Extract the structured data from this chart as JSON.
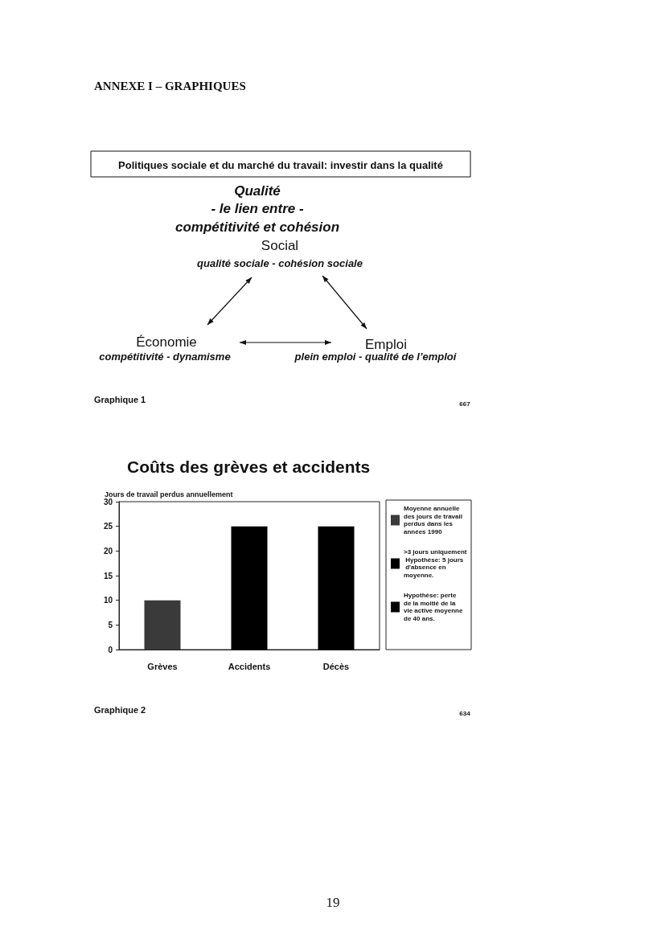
{
  "chart_data": [
    {
      "type": "other",
      "title": "Politiques sociale et du marché du travail: investir dans la qualité",
      "subtitle": "Qualité\n- le lien entre -\ncompétitivité et cohésion",
      "annotations": [
        "ANNEXE I – GRAPHIQUES",
        "Social",
        "qualité sociale - cohésion sociale",
        "Économie",
        "compétitivité - dynamisme",
        "Emploi",
        "plein emploi - qualité de l’emploi",
        "Graphique 1",
        "667"
      ]
    },
    {
      "type": "bar",
      "title": "Coûts des grèves et accidents",
      "ylabel": "Jours de travail perdus annuellement",
      "categories": [
        "Grèves",
        "Accidents",
        "Décès"
      ],
      "series": [
        {
          "name": "Moyenne annuelle des jours de travail perdus dans les années 1990",
          "color": "#3a3a3a",
          "values": [
            10,
            null,
            null
          ]
        },
        {
          "name": ">3 jours uniquement Hypothèse: 5 jours d'absence en moyenne.",
          "color": "#000000",
          "values": [
            null,
            25,
            null
          ]
        },
        {
          "name": "Hypothèse: perte de la moitié de la vie active moyenne de 40 ans.",
          "color": "#000000",
          "values": [
            null,
            null,
            25
          ]
        }
      ],
      "ylim": [
        0,
        30
      ],
      "yticks": [
        0,
        5,
        10,
        15,
        20,
        25,
        30
      ],
      "legend": "right",
      "annotations": [
        "Graphique 2",
        "634",
        "19"
      ]
    }
  ]
}
